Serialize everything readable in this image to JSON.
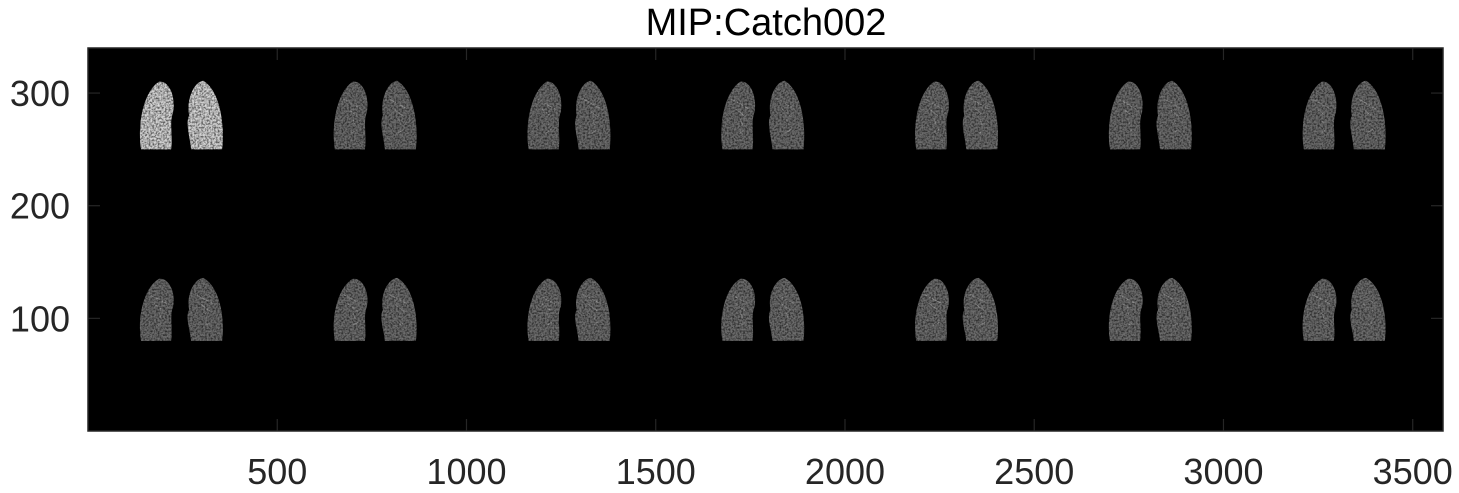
{
  "figure": {
    "title": "MIP:Catch002"
  },
  "axes": {
    "background": "#000000",
    "frame_color": "#262626",
    "xlim": [
      0,
      3580
    ],
    "ylim": [
      0,
      340
    ],
    "y_reversed": true,
    "x_ticks": [
      {
        "value": 500,
        "label": "500"
      },
      {
        "value": 1000,
        "label": "1000"
      },
      {
        "value": 1500,
        "label": "1500"
      },
      {
        "value": 2000,
        "label": "2000"
      },
      {
        "value": 2500,
        "label": "2500"
      },
      {
        "value": 3000,
        "label": "3000"
      },
      {
        "value": 3500,
        "label": "3500"
      }
    ],
    "y_ticks": [
      {
        "value": 100,
        "label": "100"
      },
      {
        "value": 200,
        "label": "200"
      },
      {
        "value": 300,
        "label": "300"
      }
    ]
  },
  "montage": {
    "tile_width": 512,
    "rows": [
      {
        "lung_top": 310,
        "lung_bottom": 250
      },
      {
        "lung_top": 135,
        "lung_bottom": 80
      }
    ],
    "tiles": [
      {
        "row": 0,
        "col": 0,
        "brightness": 0.92
      },
      {
        "row": 0,
        "col": 1,
        "brightness": 0.48
      },
      {
        "row": 0,
        "col": 2,
        "brightness": 0.48
      },
      {
        "row": 0,
        "col": 3,
        "brightness": 0.48
      },
      {
        "row": 0,
        "col": 4,
        "brightness": 0.48
      },
      {
        "row": 0,
        "col": 5,
        "brightness": 0.48
      },
      {
        "row": 0,
        "col": 6,
        "brightness": 0.48
      },
      {
        "row": 1,
        "col": 0,
        "brightness": 0.48
      },
      {
        "row": 1,
        "col": 1,
        "brightness": 0.48
      },
      {
        "row": 1,
        "col": 2,
        "brightness": 0.48
      },
      {
        "row": 1,
        "col": 3,
        "brightness": 0.48
      },
      {
        "row": 1,
        "col": 4,
        "brightness": 0.48
      },
      {
        "row": 1,
        "col": 5,
        "brightness": 0.48
      },
      {
        "row": 1,
        "col": 6,
        "brightness": 0.48
      }
    ]
  }
}
